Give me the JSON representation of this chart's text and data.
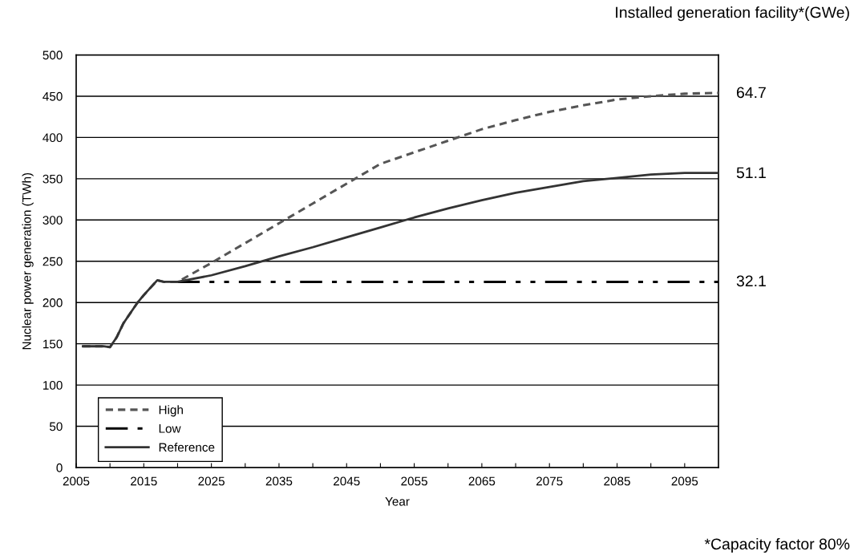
{
  "chart_data": {
    "type": "line",
    "xlabel": "Year",
    "ylabel": "Nuclear power generation (TWh)",
    "xlim": [
      2005,
      2100
    ],
    "xticks": [
      2005,
      {
        "value": 2010,
        "label": null
      },
      2015,
      {
        "value": 2020,
        "label": null
      },
      2025,
      {
        "value": 2030,
        "label": null
      },
      2035,
      {
        "value": 2040,
        "label": null
      },
      2045,
      {
        "value": 2050,
        "label": null
      },
      2055,
      {
        "value": 2060,
        "label": null
      },
      2065,
      {
        "value": 2070,
        "label": null
      },
      2075,
      {
        "value": 2080,
        "label": null
      },
      2085,
      {
        "value": 2090,
        "label": null
      },
      2095
    ],
    "ylim": [
      0,
      500
    ],
    "yticks": [
      0,
      50,
      100,
      150,
      200,
      250,
      300,
      350,
      400,
      450,
      500
    ],
    "grid": "y",
    "legend": "bottom left",
    "marker": "none",
    "series": [
      {
        "name": "High",
        "color": "#555555",
        "line_style": "dotted",
        "x": [
          2006,
          2007,
          2008,
          2009,
          2010,
          2011,
          2012,
          2013,
          2014,
          2015,
          2016,
          2017,
          2018,
          2019,
          2020,
          2025,
          2030,
          2035,
          2040,
          2045,
          2050,
          2055,
          2060,
          2065,
          2070,
          2075,
          2080,
          2085,
          2090,
          2095,
          2100
        ],
        "values": [
          147,
          147,
          147,
          147,
          146,
          158,
          175,
          187,
          199,
          209,
          218,
          227,
          225,
          225,
          225,
          248,
          272,
          296,
          320,
          344,
          368,
          382,
          396,
          410,
          421,
          431,
          439,
          446,
          450,
          453,
          454
        ]
      },
      {
        "name": "Low",
        "color": "#000000",
        "line_style": "dashed",
        "x": [
          2020,
          2100
        ],
        "values": [
          225,
          225
        ]
      },
      {
        "name": "Reference",
        "color": "#333333",
        "line_style": "solid",
        "x": [
          2006,
          2007,
          2008,
          2009,
          2010,
          2011,
          2012,
          2013,
          2014,
          2015,
          2016,
          2017,
          2018,
          2019,
          2020,
          2025,
          2030,
          2035,
          2040,
          2045,
          2050,
          2055,
          2060,
          2065,
          2070,
          2075,
          2080,
          2085,
          2090,
          2095,
          2100
        ],
        "values": [
          147,
          147,
          147,
          147,
          146,
          158,
          175,
          187,
          199,
          209,
          218,
          227,
          225,
          225,
          225,
          233,
          244,
          256,
          267,
          279,
          291,
          303,
          314,
          324,
          333,
          340,
          347,
          351,
          355,
          357,
          357
        ]
      }
    ],
    "annotations": [
      "Installed generation facility*(GWe)",
      "64.7",
      "51.1",
      "32.1",
      "*Capacity factor 80%"
    ]
  }
}
